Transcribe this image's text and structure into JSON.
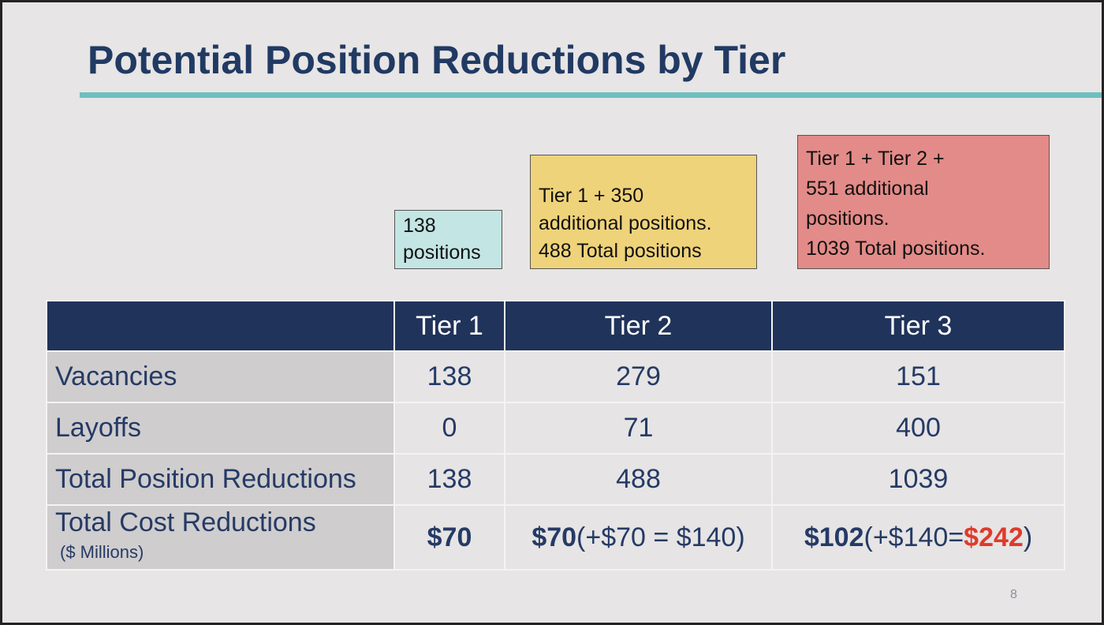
{
  "title": "Potential Position Reductions by Tier",
  "callouts": [
    {
      "lines": [
        "138",
        "positions"
      ]
    },
    {
      "lines": [
        "Tier 1 + 350",
        "additional positions.",
        "488 Total positions"
      ]
    },
    {
      "lines": [
        "Tier 1 +  Tier 2 +",
        "551 additional",
        "positions.",
        "1039 Total positions."
      ]
    }
  ],
  "table": {
    "columns": [
      "Tier 1",
      "Tier 2",
      "Tier 3"
    ],
    "rows": [
      {
        "label": "Vacancies",
        "cells": [
          138,
          279,
          151
        ]
      },
      {
        "label": "Layoffs",
        "cells": [
          0,
          71,
          400
        ]
      },
      {
        "label": "Total Position Reductions",
        "cells": [
          138,
          488,
          1039
        ]
      }
    ],
    "cost_row": {
      "label": "Total Cost Reductions",
      "sublabel": "($ Millions)",
      "cells": [
        {
          "main": "$70"
        },
        {
          "main": "$70",
          "rest": "(+$70 = $140)"
        },
        {
          "main": "$102",
          "rest": "(+$140=",
          "highlight": "$242",
          "end": ")"
        }
      ]
    }
  },
  "page_number": 8
}
